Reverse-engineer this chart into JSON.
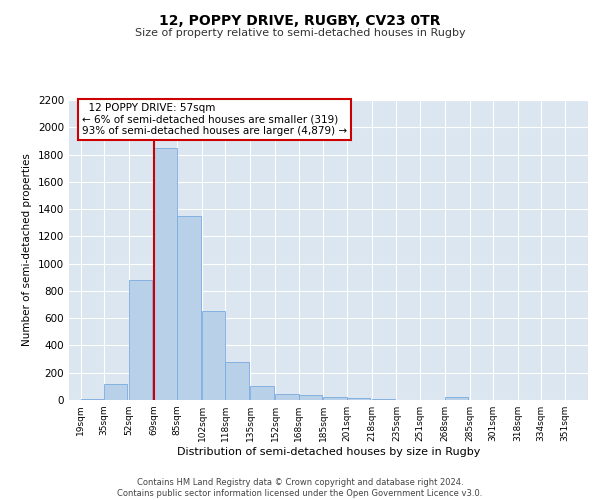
{
  "title1": "12, POPPY DRIVE, RUGBY, CV23 0TR",
  "title2": "Size of property relative to semi-detached houses in Rugby",
  "xlabel": "Distribution of semi-detached houses by size in Rugby",
  "ylabel": "Number of semi-detached properties",
  "bar_color": "#b8d0e8",
  "bar_edge_color": "#7aabe0",
  "background_color": "#dce6f0",
  "grid_color": "#ffffff",
  "vline_color": "#cc0000",
  "vline_x_bin": 2,
  "annotation_text": "  12 POPPY DRIVE: 57sqm\n← 6% of semi-detached houses are smaller (319)\n93% of semi-detached houses are larger (4,879) →",
  "annotation_box_color": "#ffffff",
  "annotation_box_edge": "#cc0000",
  "footer": "Contains HM Land Registry data © Crown copyright and database right 2024.\nContains public sector information licensed under the Open Government Licence v3.0.",
  "bin_left_edges": [
    19,
    35,
    52,
    69,
    85,
    102,
    118,
    135,
    152,
    168,
    185,
    201,
    218,
    235,
    251,
    268,
    285,
    301,
    318,
    334
  ],
  "bin_labels": [
    "19sqm",
    "35sqm",
    "52sqm",
    "69sqm",
    "85sqm",
    "102sqm",
    "118sqm",
    "135sqm",
    "152sqm",
    "168sqm",
    "185sqm",
    "201sqm",
    "218sqm",
    "235sqm",
    "251sqm",
    "268sqm",
    "285sqm",
    "301sqm",
    "318sqm",
    "334sqm",
    "351sqm"
  ],
  "bar_heights": [
    5,
    120,
    880,
    1850,
    1350,
    650,
    280,
    100,
    45,
    35,
    20,
    15,
    5,
    0,
    0,
    20,
    0,
    0,
    0,
    0
  ],
  "ylim": [
    0,
    2200
  ],
  "yticks": [
    0,
    200,
    400,
    600,
    800,
    1000,
    1200,
    1400,
    1600,
    1800,
    2000,
    2200
  ]
}
